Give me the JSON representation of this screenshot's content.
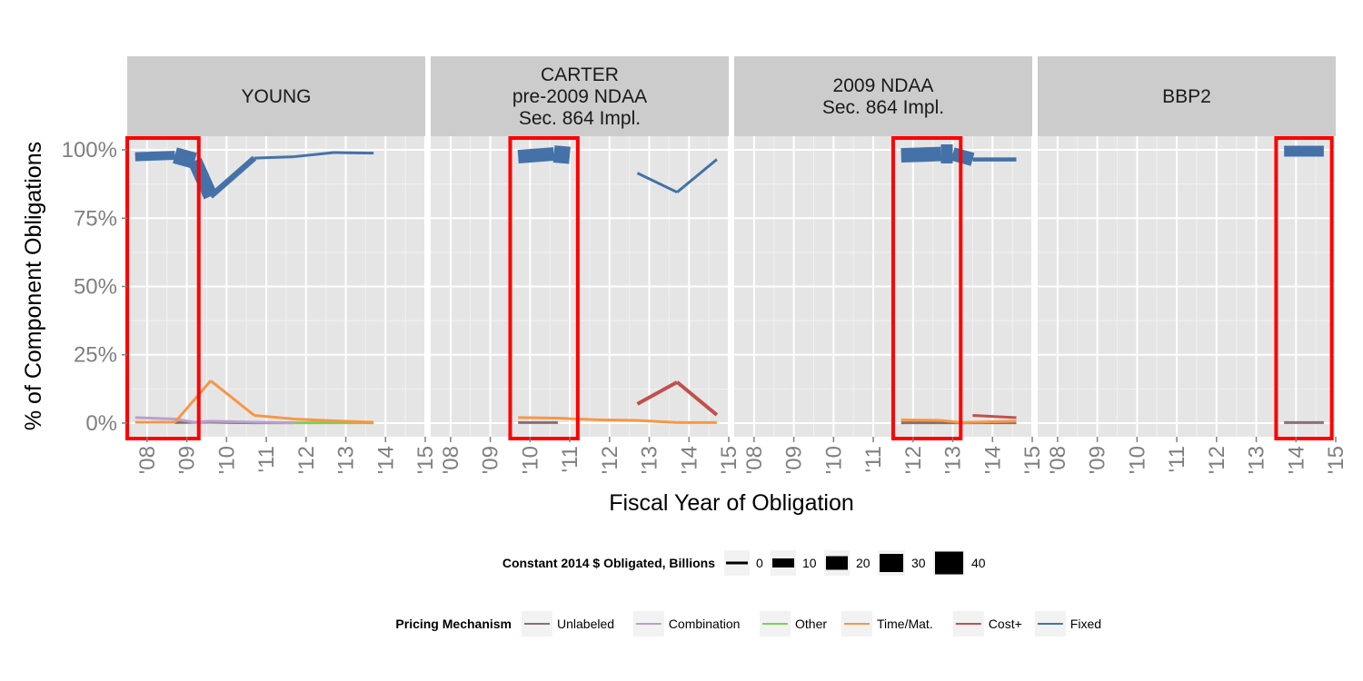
{
  "chart_data": {
    "type": "line",
    "xlabel": "Fiscal Year of Obligation",
    "ylabel": "% of Component Obligations",
    "y_ticks": [
      "0%",
      "25%",
      "50%",
      "75%",
      "100%"
    ],
    "x_ticks": [
      "'08",
      "'09",
      "'10",
      "'11",
      "'12",
      "'13",
      "'14",
      "'15"
    ],
    "xlim": [
      2007.5,
      2015
    ],
    "ylim": [
      -0.05,
      1.05
    ],
    "grid": true,
    "colors": {
      "Unlabeled": "#8c6d6d",
      "Combination": "#b8a0cc",
      "Other": "#7fcf4f",
      "Time/Mat.": "#f79646",
      "Cost+": "#c0504d",
      "Fixed": "#4472a8",
      "highlight": "#ff0000",
      "panel": "#e5e5e5",
      "strip": "#cccccc"
    },
    "panels": [
      {
        "id": "young",
        "label_lines": [
          "YOUNG"
        ],
        "highlight": [
          2007.5,
          2009.3
        ],
        "series": [
          {
            "name": "Fixed",
            "points": [
              [
                2007.7,
                0.975,
                6
              ],
              [
                2008.7,
                0.98,
                14
              ],
              [
                2009.2,
                0.96,
                22
              ],
              [
                2009.6,
                0.83,
                10
              ],
              [
                2010.7,
                0.97,
                3
              ],
              [
                2011.7,
                0.975,
                3
              ],
              [
                2012.7,
                0.99,
                3
              ],
              [
                2013.7,
                0.988,
                3
              ]
            ]
          },
          {
            "name": "Time/Mat.",
            "points": [
              [
                2007.7,
                0.003,
                3
              ],
              [
                2008.7,
                0.003,
                3
              ],
              [
                2009.6,
                0.155,
                3
              ],
              [
                2010.7,
                0.028,
                3
              ],
              [
                2011.7,
                0.015,
                3
              ],
              [
                2012.7,
                0.008,
                3
              ],
              [
                2013.7,
                0.003,
                3
              ]
            ]
          },
          {
            "name": "Combination",
            "points": [
              [
                2007.7,
                0.02,
                3
              ],
              [
                2008.7,
                0.015,
                3
              ],
              [
                2009.2,
                0.003,
                3
              ],
              [
                2009.6,
                0.007,
                3
              ],
              [
                2010.7,
                0.003,
                3
              ],
              [
                2011.7,
                0.001,
                3
              ]
            ]
          },
          {
            "name": "Other",
            "points": [
              [
                2011.7,
                0.001,
                3
              ],
              [
                2012.7,
                0.001,
                3
              ],
              [
                2013.7,
                0.001,
                3
              ]
            ]
          },
          {
            "name": "Unlabeled",
            "points": [
              [
                2008.7,
                0.002,
                3
              ],
              [
                2009.6,
                0.003,
                3
              ],
              [
                2010.7,
                0.001,
                3
              ],
              [
                2011.7,
                0.001,
                3
              ]
            ]
          }
        ]
      },
      {
        "id": "carter",
        "label_lines": [
          "CARTER",
          "pre-2009 NDAA",
          "Sec. 864 Impl."
        ],
        "highlight": [
          2009.5,
          2011.2
        ],
        "series": [
          {
            "name": "Fixed",
            "points": [
              [
                2009.7,
                0.975,
                12
              ],
              [
                2010.6,
                0.985,
                18
              ],
              [
                2011.0,
                0.98,
                20
              ]
            ]
          },
          {
            "name": "Fixed",
            "points": [
              [
                2012.7,
                0.915,
                3
              ],
              [
                2013.7,
                0.845,
                3
              ],
              [
                2014.7,
                0.965,
                3
              ]
            ]
          },
          {
            "name": "Cost+",
            "points": [
              [
                2012.7,
                0.07,
                4
              ],
              [
                2013.7,
                0.15,
                4
              ],
              [
                2014.7,
                0.03,
                4
              ]
            ]
          },
          {
            "name": "Time/Mat.",
            "points": [
              [
                2009.7,
                0.02,
                3
              ],
              [
                2010.7,
                0.018,
                3
              ],
              [
                2011.7,
                0.012,
                3
              ],
              [
                2012.7,
                0.01,
                3
              ],
              [
                2013.7,
                0.002,
                3
              ],
              [
                2014.7,
                0.002,
                3
              ]
            ]
          },
          {
            "name": "Unlabeled",
            "points": [
              [
                2009.7,
                0.002,
                3
              ],
              [
                2010.7,
                0.002,
                3
              ]
            ]
          }
        ]
      },
      {
        "id": "ndaa",
        "label_lines": [
          "2009 NDAA",
          "Sec. 864 Impl."
        ],
        "highlight": [
          2011.5,
          2013.2
        ],
        "series": [
          {
            "name": "Fixed",
            "points": [
              [
                2011.7,
                0.98,
                14
              ],
              [
                2012.7,
                0.985,
                18
              ],
              [
                2013.0,
                0.985,
                24
              ],
              [
                2013.5,
                0.965,
                6
              ],
              [
                2014.6,
                0.965,
                3
              ]
            ]
          },
          {
            "name": "Cost+",
            "points": [
              [
                2013.5,
                0.028,
                3
              ],
              [
                2014.6,
                0.02,
                3
              ]
            ]
          },
          {
            "name": "Time/Mat.",
            "points": [
              [
                2011.7,
                0.012,
                3
              ],
              [
                2012.7,
                0.01,
                3
              ],
              [
                2013.2,
                0.002,
                3
              ],
              [
                2014.6,
                0.007,
                3
              ]
            ]
          },
          {
            "name": "Unlabeled",
            "points": [
              [
                2011.7,
                0.001,
                3
              ],
              [
                2014.6,
                0.001,
                3
              ]
            ]
          }
        ]
      },
      {
        "id": "bbp2",
        "label_lines": [
          "BBP2"
        ],
        "highlight": [
          2013.5,
          2014.9
        ],
        "series": [
          {
            "name": "Fixed",
            "points": [
              [
                2013.7,
                0.995,
                12
              ],
              [
                2014.7,
                0.995,
                12
              ]
            ]
          },
          {
            "name": "Unlabeled",
            "points": [
              [
                2013.7,
                0.002,
                3
              ],
              [
                2014.7,
                0.002,
                3
              ]
            ]
          }
        ]
      }
    ],
    "legend_size": {
      "title": "Constant 2014 $ Obligated, Billions",
      "items": [
        {
          "label": "0",
          "size": 3
        },
        {
          "label": "10",
          "size": 10
        },
        {
          "label": "20",
          "size": 15
        },
        {
          "label": "30",
          "size": 20
        },
        {
          "label": "40",
          "size": 25
        }
      ]
    },
    "legend_color": {
      "title": "Pricing Mechanism",
      "items": [
        "Unlabeled",
        "Combination",
        "Other",
        "Time/Mat.",
        "Cost+",
        "Fixed"
      ]
    },
    "legend_placement": "bottom"
  }
}
